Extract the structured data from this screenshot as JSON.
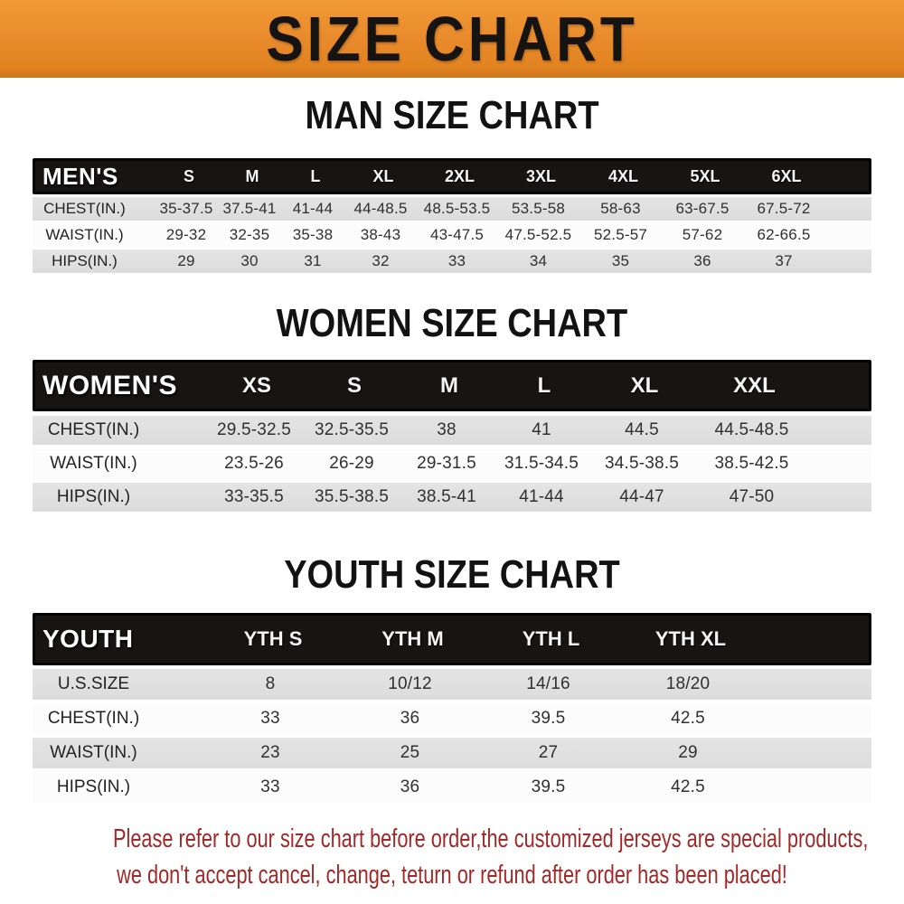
{
  "banner": {
    "title": "SIZE CHART"
  },
  "charts": {
    "men": {
      "title": "MAN SIZE CHART",
      "header_label": "MEN'S",
      "sizes": [
        "S",
        "M",
        "L",
        "XL",
        "2XL",
        "3XL",
        "4XL",
        "5XL",
        "6XL"
      ],
      "rows": [
        {
          "label": "CHEST(IN.)",
          "values": [
            "35-37.5",
            "37.5-41",
            "41-44",
            "44-48.5",
            "48.5-53.5",
            "53.5-58",
            "58-63",
            "63-67.5",
            "67.5-72"
          ]
        },
        {
          "label": "WAIST(IN.)",
          "values": [
            "29-32",
            "32-35",
            "35-38",
            "38-43",
            "43-47.5",
            "47.5-52.5",
            "52.5-57",
            "57-62",
            "62-66.5"
          ]
        },
        {
          "label": "HIPS(IN.)",
          "values": [
            "29",
            "30",
            "31",
            "32",
            "33",
            "34",
            "35",
            "36",
            "37"
          ]
        }
      ]
    },
    "women": {
      "title": "WOMEN SIZE CHART",
      "header_label": "WOMEN'S",
      "sizes": [
        "XS",
        "S",
        "M",
        "L",
        "XL",
        "XXL"
      ],
      "rows": [
        {
          "label": "CHEST(IN.)",
          "values": [
            "29.5-32.5",
            "32.5-35.5",
            "38",
            "41",
            "44.5",
            "44.5-48.5"
          ]
        },
        {
          "label": "WAIST(IN.)",
          "values": [
            "23.5-26",
            "26-29",
            "29-31.5",
            "31.5-34.5",
            "34.5-38.5",
            "38.5-42.5"
          ]
        },
        {
          "label": "HIPS(IN.)",
          "values": [
            "33-35.5",
            "35.5-38.5",
            "38.5-41",
            "41-44",
            "44-47",
            "47-50"
          ]
        }
      ]
    },
    "youth": {
      "title": "YOUTH SIZE CHART",
      "header_label": "YOUTH",
      "sizes": [
        "YTH S",
        "YTH M",
        "YTH L",
        "YTH XL"
      ],
      "rows": [
        {
          "label": "U.S.SIZE",
          "values": [
            "8",
            "10/12",
            "14/16",
            "18/20"
          ]
        },
        {
          "label": "CHEST(IN.)",
          "values": [
            "33",
            "36",
            "39.5",
            "42.5"
          ]
        },
        {
          "label": "WAIST(IN.)",
          "values": [
            "23",
            "25",
            "27",
            "29"
          ]
        },
        {
          "label": "HIPS(IN.)",
          "values": [
            "33",
            "36",
            "39.5",
            "42.5"
          ]
        }
      ]
    }
  },
  "note": {
    "line1": "Please refer to our size chart before order,the customized jerseys are special products,",
    "line2": "we don't accept cancel, change, teturn or refund after order has been placed!"
  },
  "colors": {
    "banner_orange": "#e8892b",
    "header_black": "#171414",
    "row_gray": "#dedede",
    "row_white": "#fcfcfc",
    "note_red": "#a32828"
  }
}
